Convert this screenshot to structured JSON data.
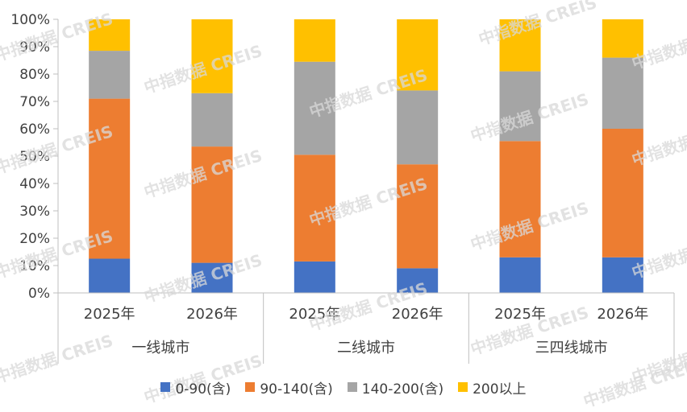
{
  "watermark_text": "中指数据 CREIS",
  "chart_data": {
    "type": "bar",
    "stacked": true,
    "percent": true,
    "ylim": [
      0,
      100
    ],
    "yticks": [
      "0%",
      "10%",
      "20%",
      "30%",
      "40%",
      "50%",
      "60%",
      "70%",
      "80%",
      "90%",
      "100%"
    ],
    "groups": [
      {
        "label": "一线城市",
        "categories": [
          "2025年",
          "2026年"
        ]
      },
      {
        "label": "二线城市",
        "categories": [
          "2025年",
          "2026年"
        ]
      },
      {
        "label": "三四线城市",
        "categories": [
          "2025年",
          "2026年"
        ]
      }
    ],
    "series": [
      {
        "name": "0-90(含)",
        "color": "#4472C4",
        "values": [
          12.5,
          11.0,
          11.5,
          9.0,
          13.0,
          13.0
        ]
      },
      {
        "name": "90-140(含)",
        "color": "#ED7D31",
        "values": [
          58.5,
          42.5,
          39.0,
          38.0,
          42.5,
          47.0
        ]
      },
      {
        "name": "140-200(含)",
        "color": "#A5A5A5",
        "values": [
          17.5,
          19.5,
          34.0,
          27.0,
          25.5,
          26.0
        ]
      },
      {
        "name": "200以上",
        "color": "#FFC000",
        "values": [
          11.5,
          27.0,
          15.5,
          26.0,
          19.0,
          14.0
        ]
      }
    ]
  }
}
